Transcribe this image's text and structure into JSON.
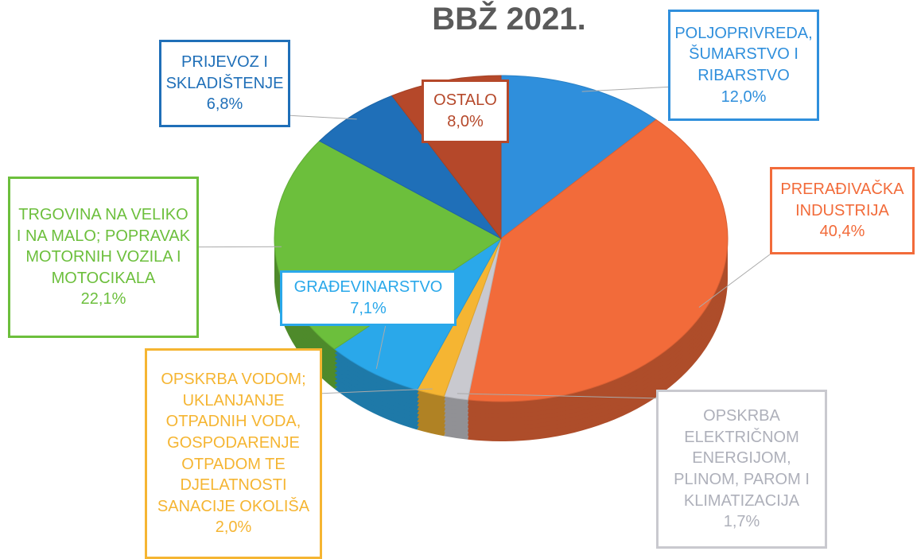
{
  "chart_data": {
    "type": "pie",
    "title": "BBŽ 2021.",
    "categories": [
      "POLJOPRIVREDA, ŠUMARSTVO I RIBARSTVO",
      "PRERAĐIVAČKA INDUSTRIJA",
      "OPSKRBA ELEKTRIČNOM ENERGIJOM, PLINOM, PAROM I KLIMATIZACIJA",
      "OPSKRBA VODOM; UKLANJANJE OTPADNIH VODA, GOSPODARENJE OTPADOM TE DJELATNOSTI SANACIJE OKOLIŠA",
      "GRAĐEVINARSTVO",
      "TRGOVINA NA VELIKO I NA MALO; POPRAVAK MOTORNIH VOZILA I MOTOCIKALA",
      "PRIJEVOZ I SKLADIŠTENJE",
      "OSTALO"
    ],
    "values": [
      12.0,
      40.4,
      1.7,
      2.0,
      7.1,
      22.1,
      6.8,
      8.0
    ],
    "value_labels": [
      "12,0%",
      "40,4%",
      "1,7%",
      "2,0%",
      "7,1%",
      "22,1%",
      "6,8%",
      "8,0%"
    ],
    "colors": [
      "#2f8fdc",
      "#f26b3a",
      "#c9c9cf",
      "#f5b532",
      "#2aa8ea",
      "#6cbf3c",
      "#1f6fb8",
      "#b5482a"
    ]
  }
}
